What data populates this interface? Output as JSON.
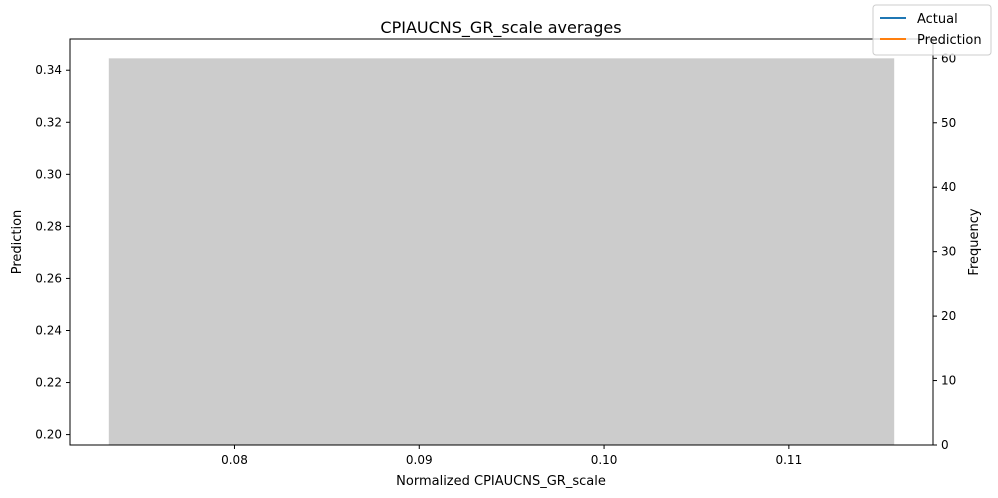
{
  "chart_data": {
    "type": "bar",
    "title": "CPIAUCNS_GR_scale averages",
    "xlabel": "Normalized CPIAUCNS_GR_scale",
    "ylabel_left": "Prediction",
    "ylabel_right": "Frequency",
    "xlim": [
      0.0711,
      0.1178
    ],
    "ylim_left": [
      0.196,
      0.352
    ],
    "ylim_right": [
      0,
      63
    ],
    "x_ticks": [
      "0.08",
      "0.09",
      "0.10",
      "0.11"
    ],
    "y_left_ticks": [
      "0.20",
      "0.22",
      "0.24",
      "0.26",
      "0.28",
      "0.30",
      "0.32",
      "0.34"
    ],
    "y_right_ticks": [
      "0",
      "10",
      "20",
      "30",
      "40",
      "50",
      "60"
    ],
    "bars": [
      {
        "x_start": 0.0732,
        "x_end": 0.1157,
        "frequency": 60,
        "color": "#cccccc"
      }
    ],
    "series": [
      {
        "name": "Actual",
        "color": "#1f77b4",
        "values": []
      },
      {
        "name": "Prediction",
        "color": "#ff7f0e",
        "values": []
      }
    ],
    "legend_position": "top-right",
    "grid": false
  }
}
